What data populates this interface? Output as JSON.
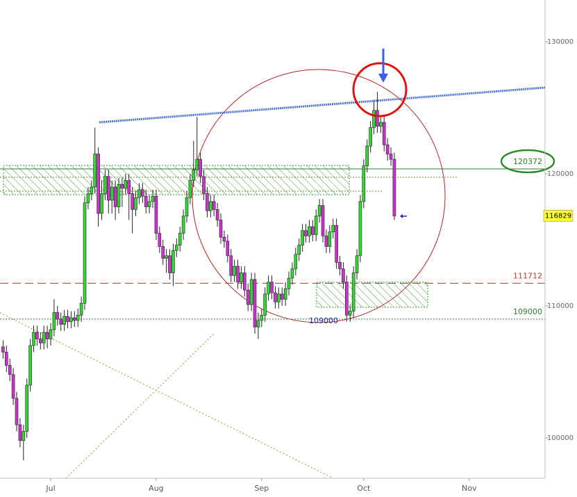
{
  "chart_data": {
    "type": "candlestick",
    "x": [
      -14,
      -13,
      -12,
      -11,
      -10,
      -9,
      -8,
      -7,
      -6,
      -5,
      -4,
      -3,
      -2,
      -1,
      0,
      1,
      2,
      3,
      4,
      5,
      6,
      7,
      8,
      9,
      10,
      11,
      12,
      13,
      14,
      15,
      16,
      17,
      18,
      19,
      20,
      21,
      22,
      23,
      24,
      25,
      26,
      27,
      28,
      29,
      30,
      31,
      32,
      33,
      34,
      35,
      36,
      37,
      38,
      39,
      40,
      41,
      42,
      43,
      44,
      45,
      46,
      47,
      48,
      49,
      50,
      51,
      52,
      53,
      54,
      55,
      56,
      57,
      58,
      59,
      60,
      61,
      62,
      63,
      64,
      65,
      66,
      67,
      68,
      69,
      70,
      71,
      72,
      73,
      74,
      75,
      76,
      77,
      78,
      79,
      80,
      81,
      82,
      83,
      84,
      85,
      86,
      87,
      88,
      89,
      90,
      91,
      92,
      93,
      94,
      95,
      96,
      97,
      98,
      99,
      100,
      101
    ],
    "open": [
      106900,
      106500,
      105500,
      104800,
      103000,
      101000,
      99800,
      100500,
      104000,
      107000,
      108000,
      107500,
      107200,
      108000,
      107500,
      108200,
      109500,
      109000,
      108600,
      109200,
      108800,
      109100,
      108900,
      109300,
      110200,
      117800,
      118500,
      119000,
      121500,
      117000,
      118500,
      119800,
      118000,
      119000,
      117500,
      119200,
      118900,
      119500,
      118500,
      117300,
      118200,
      118800,
      118300,
      117500,
      117900,
      118300,
      115500,
      114500,
      113600,
      113800,
      112500,
      114200,
      114600,
      115500,
      116800,
      118200,
      119500,
      120300,
      121100,
      119800,
      118500,
      117200,
      117900,
      117300,
      116500,
      115200,
      114900,
      113800,
      112300,
      113000,
      111800,
      112500,
      111200,
      110100,
      112000,
      108400,
      108900,
      109300,
      110900,
      111800,
      111000,
      110300,
      110900,
      110500,
      111300,
      112100,
      112800,
      113900,
      114600,
      115700,
      115300,
      116000,
      115400,
      116800,
      117600,
      115300,
      114500,
      115600,
      116100,
      113300,
      112800,
      111800,
      109300,
      109600,
      112500,
      113800,
      117900,
      120600,
      122100,
      123500,
      124800,
      123600,
      123900,
      122200,
      121500,
      121100
    ],
    "high": [
      107400,
      107000,
      106000,
      105300,
      103500,
      101500,
      101000,
      104500,
      107500,
      108500,
      108500,
      108000,
      108500,
      108500,
      108700,
      110500,
      110000,
      109500,
      109700,
      109700,
      109600,
      109600,
      109800,
      110700,
      118300,
      119000,
      119500,
      123500,
      122000,
      119500,
      120300,
      120300,
      119500,
      119500,
      119700,
      119700,
      120000,
      120000,
      119000,
      118700,
      119300,
      119300,
      118800,
      118400,
      118800,
      118800,
      116000,
      115000,
      114300,
      114300,
      114700,
      115100,
      116000,
      117300,
      118700,
      120000,
      122500,
      124300,
      121600,
      120300,
      119000,
      118400,
      118400,
      117800,
      117000,
      115700,
      115400,
      114300,
      113500,
      113500,
      113000,
      113000,
      111700,
      112500,
      112500,
      109500,
      109800,
      111400,
      112300,
      112300,
      111500,
      111400,
      111400,
      111800,
      112600,
      113300,
      114400,
      115100,
      116200,
      116200,
      116500,
      116500,
      117300,
      118100,
      118100,
      115800,
      116100,
      116600,
      116600,
      113800,
      113300,
      112300,
      110100,
      113000,
      114300,
      118400,
      121100,
      122600,
      124000,
      125600,
      126200,
      124400,
      124400,
      122700,
      122000,
      121600
    ],
    "low": [
      106000,
      105000,
      104300,
      102500,
      100500,
      99300,
      98300,
      100000,
      103500,
      106500,
      107000,
      106700,
      106700,
      106800,
      107000,
      107700,
      108500,
      108100,
      108100,
      108300,
      108300,
      108400,
      108400,
      108800,
      109700,
      117300,
      118000,
      118500,
      116000,
      116500,
      118000,
      117000,
      117000,
      116500,
      117000,
      117500,
      118400,
      116500,
      115500,
      116800,
      117700,
      117800,
      117000,
      117000,
      117400,
      115000,
      114000,
      113100,
      112500,
      112000,
      111500,
      113700,
      114100,
      115000,
      116300,
      117700,
      119000,
      119800,
      119300,
      118000,
      116700,
      116700,
      116800,
      116000,
      114700,
      114400,
      113300,
      111800,
      111800,
      111300,
      111300,
      110700,
      109600,
      109600,
      107900,
      107500,
      108400,
      108800,
      110400,
      110500,
      109800,
      109800,
      110000,
      110000,
      110800,
      111600,
      112300,
      113400,
      114100,
      114800,
      114800,
      114900,
      114900,
      116300,
      114800,
      114000,
      114000,
      115100,
      112800,
      112300,
      111300,
      108800,
      108800,
      109100,
      112000,
      113300,
      117400,
      120100,
      121600,
      123000,
      123100,
      123100,
      121700,
      121000,
      120600,
      116500
    ],
    "close": [
      106500,
      105500,
      104800,
      103000,
      101000,
      99800,
      100500,
      104000,
      107000,
      108000,
      107500,
      107200,
      108000,
      107500,
      108200,
      109500,
      109000,
      108600,
      109200,
      108800,
      109100,
      108900,
      109300,
      110200,
      117800,
      118500,
      119000,
      121500,
      117000,
      118500,
      119800,
      118000,
      119000,
      117500,
      119200,
      118900,
      119500,
      118500,
      117300,
      118200,
      118800,
      118300,
      117500,
      117900,
      118300,
      115500,
      114500,
      113600,
      113800,
      112500,
      114200,
      114600,
      115500,
      116800,
      118200,
      119500,
      120300,
      121100,
      119800,
      118500,
      117200,
      117900,
      117300,
      116500,
      115200,
      114900,
      113800,
      112300,
      113000,
      111800,
      112500,
      111200,
      110100,
      112000,
      108400,
      108900,
      109300,
      110900,
      111800,
      111000,
      110300,
      110900,
      110500,
      111300,
      112100,
      112800,
      113900,
      114600,
      115700,
      115300,
      116000,
      115400,
      116800,
      117600,
      115300,
      114500,
      115600,
      116100,
      113300,
      112800,
      111800,
      109300,
      109600,
      112500,
      113800,
      117900,
      120600,
      122100,
      123500,
      124800,
      123600,
      123900,
      122200,
      121500,
      121100,
      116800
    ],
    "up_color": "#33d633",
    "down_color": "#cc33cc",
    "xlim": [
      -14.9,
      145.3
    ],
    "ylim": [
      96950,
      133160
    ],
    "xticks": [
      {
        "value": 0,
        "label": "Jul"
      },
      {
        "value": 31,
        "label": "Aug"
      },
      {
        "value": 62,
        "label": "Sep"
      },
      {
        "value": 92,
        "label": "Oct"
      },
      {
        "value": 123,
        "label": "Nov"
      }
    ],
    "yticks": [
      100000,
      110000,
      120000,
      130000
    ],
    "levels": [
      {
        "value": 120372,
        "color": "#2e7d32",
        "style": "solid"
      },
      {
        "value": 111712,
        "color": "#c0392b",
        "style": "dashed"
      },
      {
        "value": 109000,
        "color": "#2e7d32",
        "style": "dotted"
      }
    ],
    "marker_label": 109000,
    "last_price": 116829
  }
}
